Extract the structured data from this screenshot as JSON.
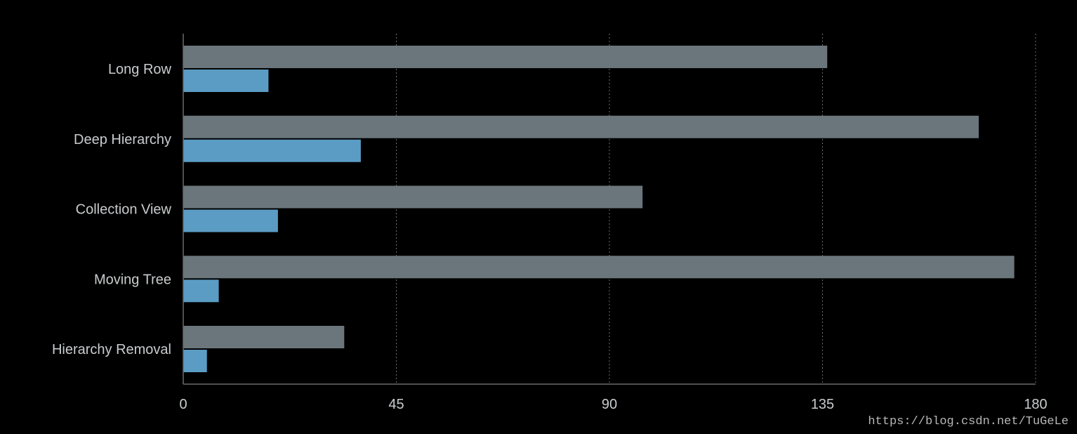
{
  "chart_data": {
    "type": "bar",
    "orientation": "horizontal",
    "categories": [
      "Long Row",
      "Deep Hierarchy",
      "Collection View",
      "Moving Tree",
      "Hierarchy Removal"
    ],
    "series": [
      {
        "values": [
          136,
          168,
          97,
          175.5,
          34
        ]
      },
      {
        "values": [
          18,
          37.5,
          20,
          7.5,
          5
        ]
      }
    ],
    "xticks": [
      "0",
      "45",
      "90",
      "135",
      "180"
    ],
    "xlim": [
      0,
      180
    ],
    "grid": "vertical dotted",
    "legend": "none",
    "colors": {
      "background": "#000000",
      "series_1": "#6b767c",
      "series_2": "#5b9cc4",
      "axis": "#6a6a6a",
      "text": "#c9ccce"
    }
  },
  "watermark": "https://blog.csdn.net/TuGeLe"
}
